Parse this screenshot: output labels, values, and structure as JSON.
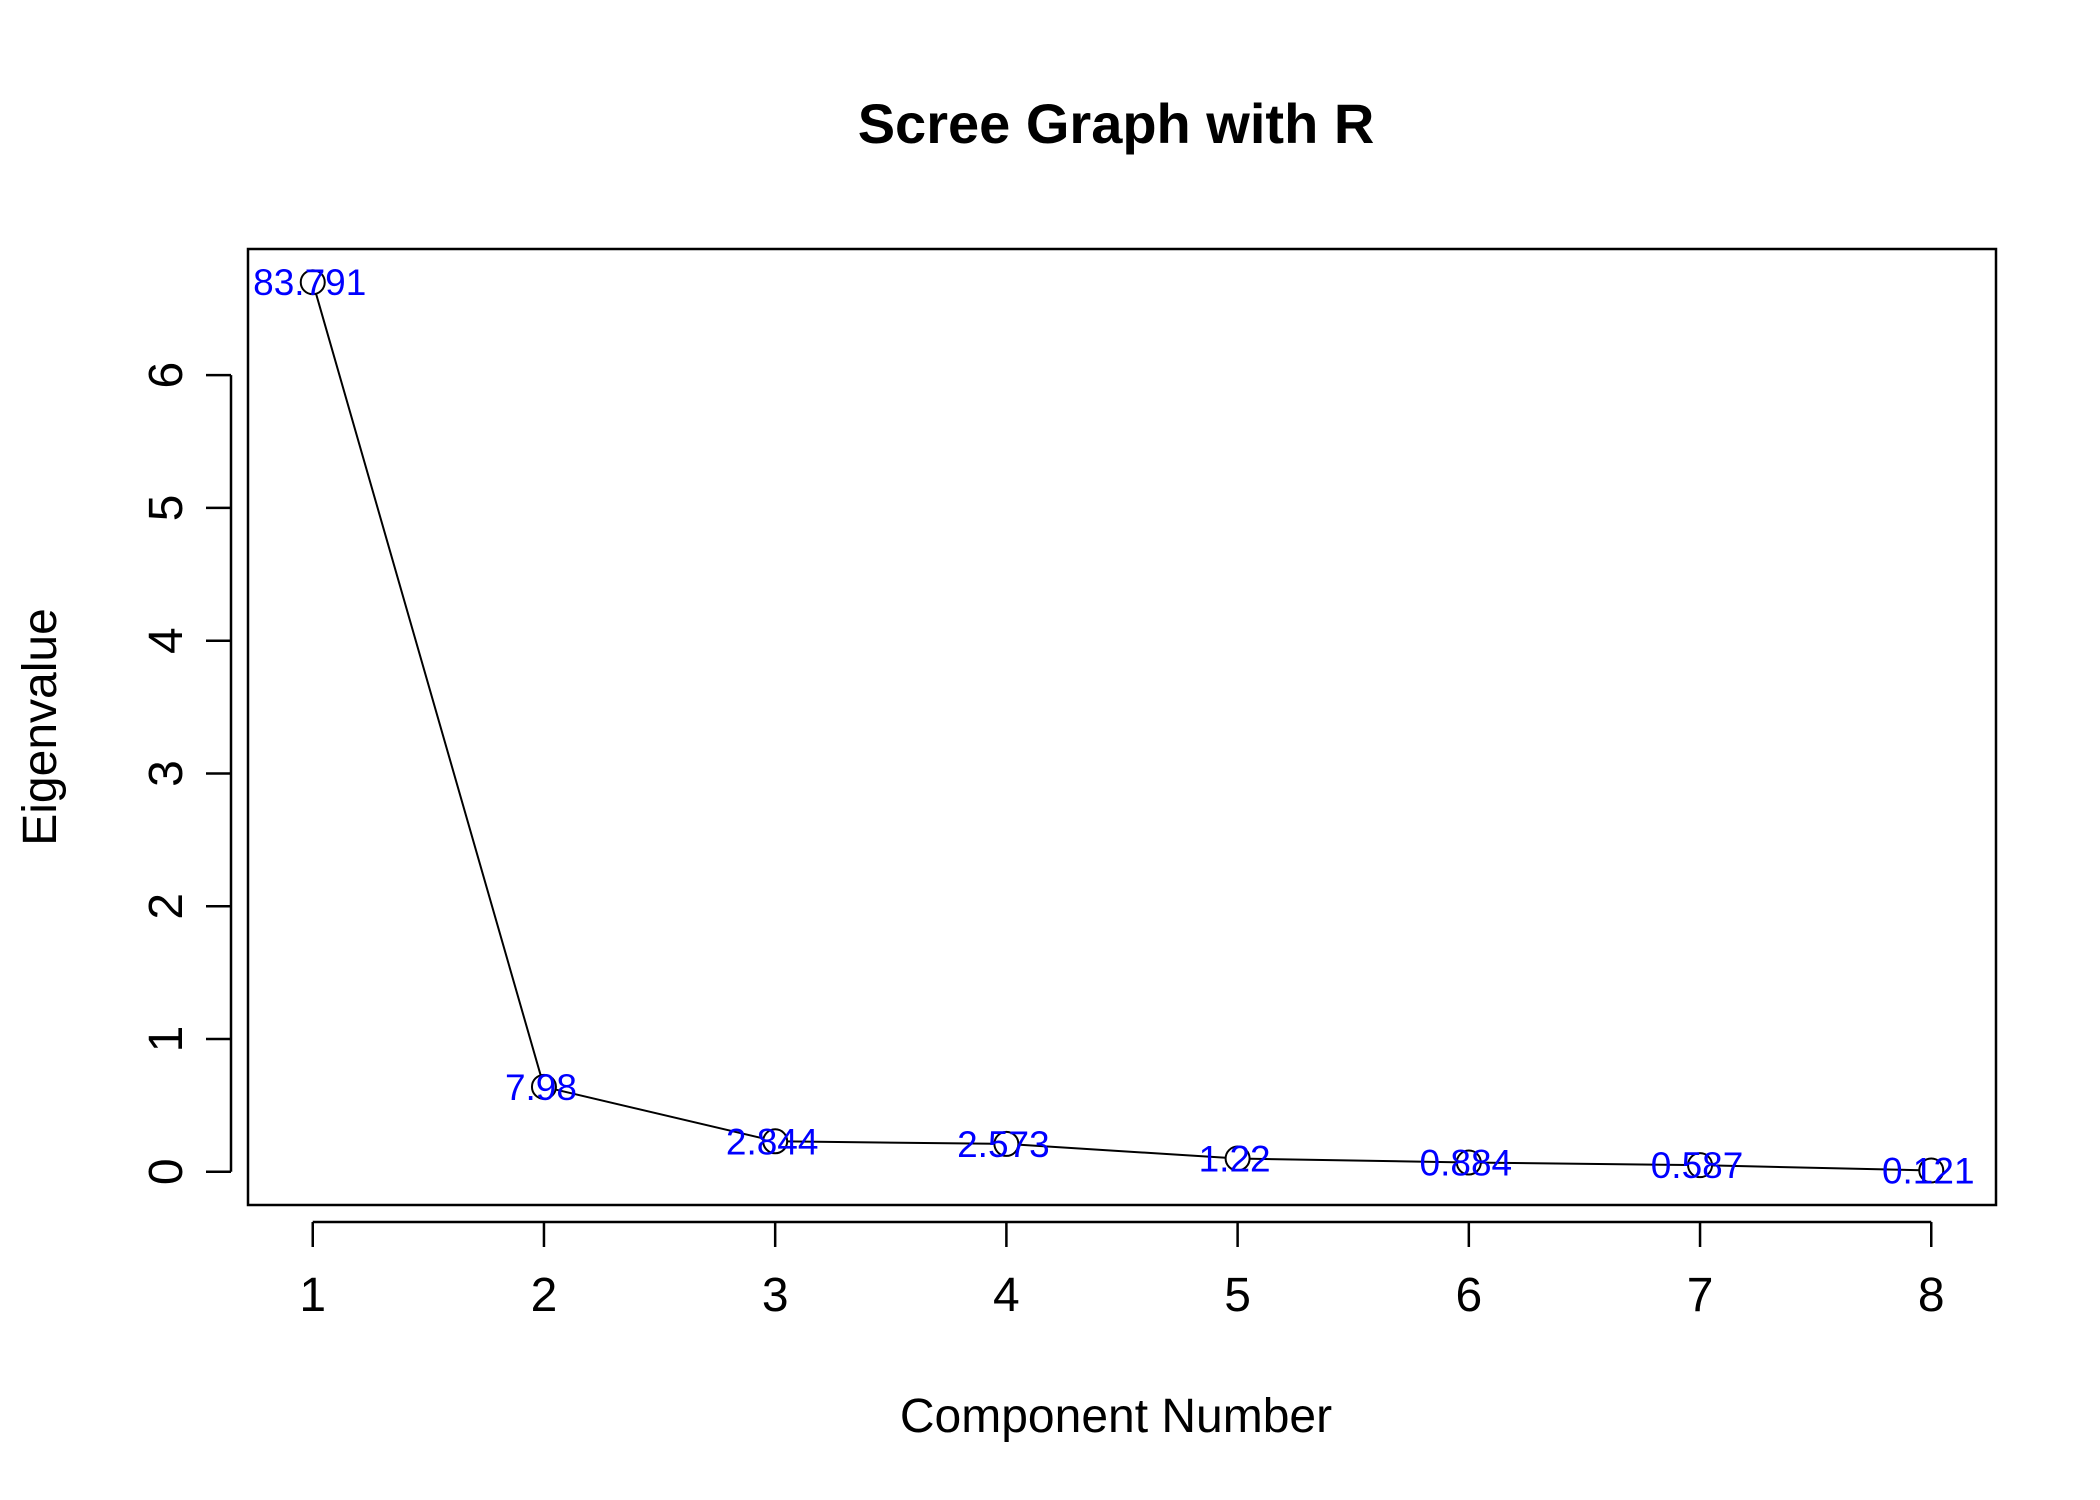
{
  "chart_data": {
    "type": "line",
    "title": "Scree Graph with R",
    "xlabel": "Component Number",
    "ylabel": "Eigenvalue",
    "x": [
      1,
      2,
      3,
      4,
      5,
      6,
      7,
      8
    ],
    "series": [
      {
        "values": [
          6.7,
          0.64,
          0.23,
          0.21,
          0.1,
          0.07,
          0.05,
          0.01
        ]
      }
    ],
    "point_labels": [
      "83.791",
      "7.98",
      "2.844",
      "2.573",
      "1.22",
      "0.884",
      "0.587",
      "0.121"
    ],
    "x_ticks": [
      1,
      2,
      3,
      4,
      5,
      6,
      7,
      8
    ],
    "y_ticks": [
      0,
      1,
      2,
      3,
      4,
      5,
      6
    ],
    "xlim": [
      0.72,
      8.28
    ],
    "ylim": [
      -0.25,
      6.95
    ],
    "label_color": "#0000FF",
    "line_color": "#000000",
    "grid": false,
    "legend": "none"
  }
}
